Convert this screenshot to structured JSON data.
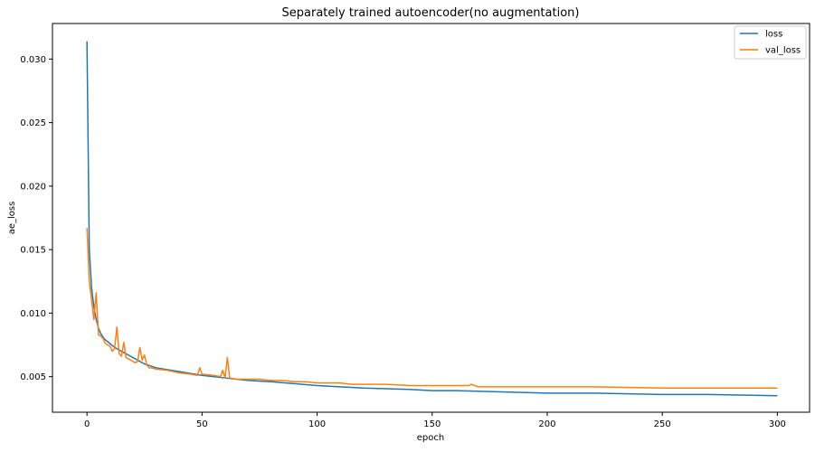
{
  "chart_data": {
    "type": "line",
    "title": "Separately trained autoencoder(no augmentation)",
    "xlabel": "epoch",
    "ylabel": "ae_loss",
    "xlim": [
      -15,
      314
    ],
    "ylim": [
      0.0022,
      0.0328
    ],
    "xticks": [
      0,
      50,
      100,
      150,
      200,
      250,
      300
    ],
    "yticks": [
      0.005,
      0.01,
      0.015,
      0.02,
      0.025,
      0.03
    ],
    "ytick_labels": [
      "0.005",
      "0.010",
      "0.015",
      "0.020",
      "0.025",
      "0.030"
    ],
    "grid": false,
    "legend_position": "top-right",
    "series": [
      {
        "name": "loss",
        "color": "#1f77b4",
        "x": [
          0,
          1,
          2,
          3,
          4,
          5,
          6,
          7,
          8,
          10,
          12,
          15,
          18,
          20,
          25,
          30,
          40,
          50,
          60,
          70,
          80,
          100,
          120,
          140,
          150,
          160,
          180,
          200,
          220,
          250,
          270,
          300
        ],
        "y": [
          0.0314,
          0.015,
          0.012,
          0.0105,
          0.0095,
          0.0088,
          0.0084,
          0.0081,
          0.0079,
          0.0076,
          0.0073,
          0.007,
          0.0067,
          0.0065,
          0.006,
          0.0057,
          0.0054,
          0.0051,
          0.0049,
          0.0047,
          0.0046,
          0.0043,
          0.0041,
          0.004,
          0.0039,
          0.0039,
          0.0038,
          0.0037,
          0.0037,
          0.0036,
          0.0036,
          0.0035
        ]
      },
      {
        "name": "val_loss",
        "color": "#ff7f0e",
        "x": [
          0,
          1,
          2,
          3,
          4,
          5,
          6,
          7,
          8,
          9,
          10,
          11,
          12,
          13,
          14,
          15,
          16,
          17,
          18,
          19,
          20,
          21,
          22,
          23,
          24,
          25,
          26,
          27,
          28,
          30,
          35,
          40,
          45,
          48,
          49,
          50,
          55,
          58,
          59,
          60,
          61,
          62,
          65,
          70,
          75,
          80,
          85,
          90,
          95,
          100,
          110,
          115,
          120,
          130,
          140,
          150,
          160,
          166,
          167,
          170,
          180,
          200,
          220,
          250,
          270,
          300
        ],
        "y": [
          0.0167,
          0.0125,
          0.011,
          0.0095,
          0.0116,
          0.0083,
          0.0082,
          0.008,
          0.0076,
          0.0075,
          0.0074,
          0.007,
          0.0072,
          0.0089,
          0.0068,
          0.0066,
          0.0077,
          0.0065,
          0.0064,
          0.0063,
          0.0062,
          0.0061,
          0.0062,
          0.0073,
          0.0063,
          0.0067,
          0.0059,
          0.0057,
          0.0057,
          0.0056,
          0.0055,
          0.0053,
          0.0052,
          0.0051,
          0.0057,
          0.0052,
          0.0051,
          0.005,
          0.0055,
          0.0049,
          0.0065,
          0.0049,
          0.0048,
          0.0048,
          0.0048,
          0.0047,
          0.0047,
          0.0046,
          0.0046,
          0.0045,
          0.0045,
          0.0044,
          0.0044,
          0.0044,
          0.0043,
          0.0043,
          0.0043,
          0.0043,
          0.0044,
          0.0042,
          0.0042,
          0.0042,
          0.0042,
          0.0041,
          0.0041,
          0.0041
        ]
      }
    ]
  }
}
